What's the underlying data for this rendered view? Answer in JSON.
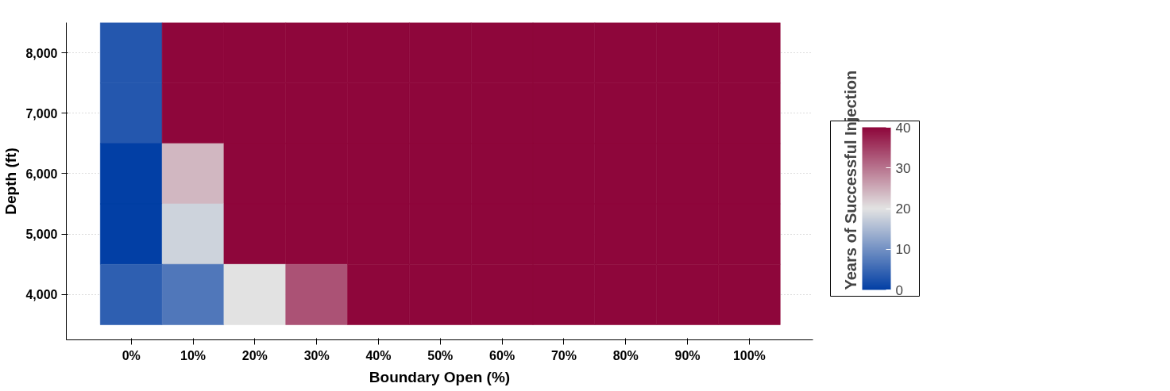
{
  "chart_data": {
    "type": "heatmap",
    "xlabel": "Boundary Open (%)",
    "ylabel": "Depth (ft)",
    "clabel": "Years of Successful Injection",
    "categories": [
      "0%",
      "10%",
      "20%",
      "30%",
      "40%",
      "50%",
      "60%",
      "70%",
      "80%",
      "90%",
      "100%"
    ],
    "y_categories": [
      "8,000",
      "7,000",
      "6,000",
      "5,000",
      "4,000"
    ],
    "cells": [
      [
        3,
        40,
        40,
        40,
        40,
        40,
        40,
        40,
        40,
        40,
        40
      ],
      [
        3,
        40,
        40,
        40,
        40,
        40,
        40,
        40,
        40,
        40,
        40
      ],
      [
        0,
        24,
        40,
        40,
        40,
        40,
        40,
        40,
        40,
        40,
        40
      ],
      [
        0,
        18,
        40,
        40,
        40,
        40,
        40,
        40,
        40,
        40,
        40
      ],
      [
        4,
        7,
        20,
        33,
        40,
        40,
        40,
        40,
        40,
        40,
        40
      ]
    ],
    "clim": [
      0,
      40
    ],
    "cticks": [
      0,
      10,
      20,
      30,
      40
    ],
    "grid": "y"
  }
}
